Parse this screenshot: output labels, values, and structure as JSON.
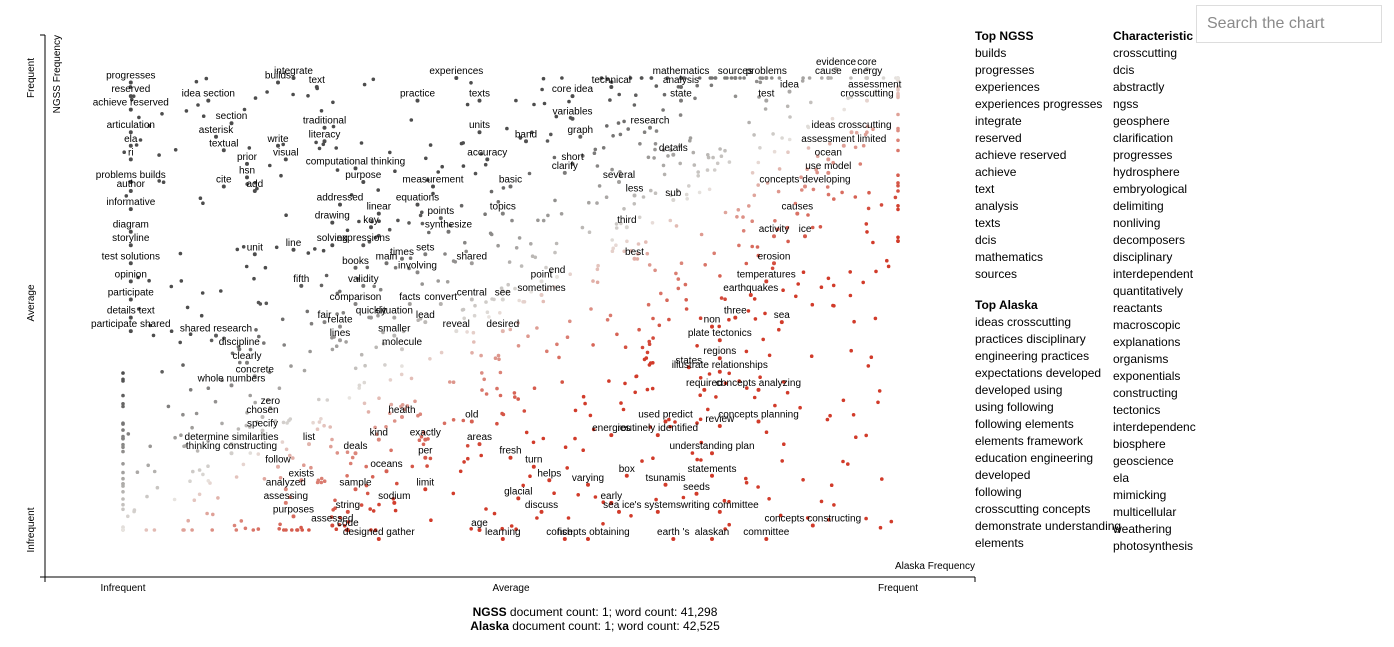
{
  "search": {
    "placeholder": "Search the chart"
  },
  "chart_data": {
    "type": "scatter",
    "title": "",
    "xlabel": "Alaska Frequency",
    "ylabel": "NGSS Frequency",
    "x_ticks": [
      "Infrequent",
      "Average",
      "Frequent"
    ],
    "y_ticks": [
      "Infrequent",
      "Average",
      "Frequent"
    ],
    "xlim": [
      0,
      1
    ],
    "ylim": [
      0,
      1
    ],
    "grid": false,
    "colors": {
      "ngss": "#4d4d4d",
      "alaska": "#d13b2a",
      "neutral": "#e8e4e0"
    },
    "labeled_points": [
      {
        "term": "progresses",
        "x": 0.01,
        "y": 0.99
      },
      {
        "term": "reserved",
        "x": 0.01,
        "y": 0.96
      },
      {
        "term": "achieve reserved",
        "x": 0.01,
        "y": 0.93
      },
      {
        "term": "idea section",
        "x": 0.11,
        "y": 0.95
      },
      {
        "term": "builds",
        "x": 0.2,
        "y": 0.99
      },
      {
        "term": "integrate",
        "x": 0.22,
        "y": 1.0
      },
      {
        "term": "text",
        "x": 0.25,
        "y": 0.98
      },
      {
        "term": "articulation",
        "x": 0.01,
        "y": 0.88
      },
      {
        "term": "section",
        "x": 0.14,
        "y": 0.9
      },
      {
        "term": "asterisk",
        "x": 0.12,
        "y": 0.87
      },
      {
        "term": "ela",
        "x": 0.01,
        "y": 0.85
      },
      {
        "term": "textual",
        "x": 0.13,
        "y": 0.84
      },
      {
        "term": "write",
        "x": 0.2,
        "y": 0.85
      },
      {
        "term": "traditional",
        "x": 0.26,
        "y": 0.89
      },
      {
        "term": "literacy",
        "x": 0.26,
        "y": 0.86
      },
      {
        "term": "ri",
        "x": 0.01,
        "y": 0.82
      },
      {
        "term": "prior",
        "x": 0.16,
        "y": 0.81
      },
      {
        "term": "visual",
        "x": 0.21,
        "y": 0.82
      },
      {
        "term": "computational thinking",
        "x": 0.3,
        "y": 0.8
      },
      {
        "term": "hsn",
        "x": 0.16,
        "y": 0.78
      },
      {
        "term": "purpose",
        "x": 0.31,
        "y": 0.77
      },
      {
        "term": "measurement",
        "x": 0.4,
        "y": 0.76
      },
      {
        "term": "problems builds",
        "x": 0.01,
        "y": 0.77
      },
      {
        "term": "author",
        "x": 0.01,
        "y": 0.75
      },
      {
        "term": "cite",
        "x": 0.13,
        "y": 0.76
      },
      {
        "term": "add",
        "x": 0.17,
        "y": 0.75
      },
      {
        "term": "addressed",
        "x": 0.28,
        "y": 0.72
      },
      {
        "term": "equations",
        "x": 0.38,
        "y": 0.72
      },
      {
        "term": "informative",
        "x": 0.01,
        "y": 0.71
      },
      {
        "term": "linear",
        "x": 0.33,
        "y": 0.7
      },
      {
        "term": "points",
        "x": 0.41,
        "y": 0.69
      },
      {
        "term": "drawing",
        "x": 0.27,
        "y": 0.68
      },
      {
        "term": "key",
        "x": 0.32,
        "y": 0.67
      },
      {
        "term": "synthesize",
        "x": 0.42,
        "y": 0.66
      },
      {
        "term": "diagram",
        "x": 0.01,
        "y": 0.66
      },
      {
        "term": "storyline",
        "x": 0.01,
        "y": 0.63
      },
      {
        "term": "solving",
        "x": 0.27,
        "y": 0.63
      },
      {
        "term": "expressions",
        "x": 0.31,
        "y": 0.63
      },
      {
        "term": "line",
        "x": 0.22,
        "y": 0.62
      },
      {
        "term": "unit",
        "x": 0.17,
        "y": 0.61
      },
      {
        "term": "sets",
        "x": 0.39,
        "y": 0.61
      },
      {
        "term": "times",
        "x": 0.36,
        "y": 0.6
      },
      {
        "term": "shared",
        "x": 0.45,
        "y": 0.59
      },
      {
        "term": "main",
        "x": 0.34,
        "y": 0.59
      },
      {
        "term": "test solutions",
        "x": 0.01,
        "y": 0.59
      },
      {
        "term": "books",
        "x": 0.3,
        "y": 0.58
      },
      {
        "term": "involving",
        "x": 0.38,
        "y": 0.57
      },
      {
        "term": "fifth",
        "x": 0.23,
        "y": 0.54
      },
      {
        "term": "opinion",
        "x": 0.01,
        "y": 0.55
      },
      {
        "term": "validity",
        "x": 0.31,
        "y": 0.54
      },
      {
        "term": "participate",
        "x": 0.01,
        "y": 0.51
      },
      {
        "term": "central",
        "x": 0.45,
        "y": 0.51
      },
      {
        "term": "see",
        "x": 0.49,
        "y": 0.51
      },
      {
        "term": "comparison",
        "x": 0.3,
        "y": 0.5
      },
      {
        "term": "facts",
        "x": 0.37,
        "y": 0.5
      },
      {
        "term": "convert",
        "x": 0.41,
        "y": 0.5
      },
      {
        "term": "situation",
        "x": 0.35,
        "y": 0.47
      },
      {
        "term": "quickly",
        "x": 0.32,
        "y": 0.47
      },
      {
        "term": "fair",
        "x": 0.26,
        "y": 0.46
      },
      {
        "term": "lead",
        "x": 0.39,
        "y": 0.46
      },
      {
        "term": "details text",
        "x": 0.01,
        "y": 0.47
      },
      {
        "term": "relate",
        "x": 0.28,
        "y": 0.45
      },
      {
        "term": "reveal",
        "x": 0.43,
        "y": 0.44
      },
      {
        "term": "desired",
        "x": 0.49,
        "y": 0.44
      },
      {
        "term": "participate shared",
        "x": 0.01,
        "y": 0.44
      },
      {
        "term": "shared research",
        "x": 0.12,
        "y": 0.43
      },
      {
        "term": "smaller",
        "x": 0.35,
        "y": 0.43
      },
      {
        "term": "lines",
        "x": 0.28,
        "y": 0.42
      },
      {
        "term": "discipline",
        "x": 0.15,
        "y": 0.4
      },
      {
        "term": "molecule",
        "x": 0.36,
        "y": 0.4
      },
      {
        "term": "clearly",
        "x": 0.16,
        "y": 0.37
      },
      {
        "term": "concrete",
        "x": 0.17,
        "y": 0.34
      },
      {
        "term": "whole numbers",
        "x": 0.14,
        "y": 0.32
      },
      {
        "term": "zero",
        "x": 0.19,
        "y": 0.27
      },
      {
        "term": "chosen",
        "x": 0.18,
        "y": 0.25
      },
      {
        "term": "health",
        "x": 0.36,
        "y": 0.25
      },
      {
        "term": "old",
        "x": 0.45,
        "y": 0.24
      },
      {
        "term": "specify",
        "x": 0.18,
        "y": 0.22
      },
      {
        "term": "kind",
        "x": 0.33,
        "y": 0.2
      },
      {
        "term": "exactly",
        "x": 0.39,
        "y": 0.2
      },
      {
        "term": "determine similarities",
        "x": 0.14,
        "y": 0.19
      },
      {
        "term": "list",
        "x": 0.24,
        "y": 0.19
      },
      {
        "term": "areas",
        "x": 0.46,
        "y": 0.19
      },
      {
        "term": "deals",
        "x": 0.3,
        "y": 0.17
      },
      {
        "term": "per",
        "x": 0.39,
        "y": 0.16
      },
      {
        "term": "thinking constructing",
        "x": 0.14,
        "y": 0.17
      },
      {
        "term": "fresh",
        "x": 0.5,
        "y": 0.16
      },
      {
        "term": "follow",
        "x": 0.2,
        "y": 0.14
      },
      {
        "term": "oceans",
        "x": 0.34,
        "y": 0.13
      },
      {
        "term": "turn",
        "x": 0.53,
        "y": 0.14
      },
      {
        "term": "exists",
        "x": 0.23,
        "y": 0.11
      },
      {
        "term": "helps",
        "x": 0.55,
        "y": 0.11
      },
      {
        "term": "varying",
        "x": 0.6,
        "y": 0.1
      },
      {
        "term": "analyzed",
        "x": 0.21,
        "y": 0.09
      },
      {
        "term": "sample",
        "x": 0.3,
        "y": 0.09
      },
      {
        "term": "limit",
        "x": 0.39,
        "y": 0.09
      },
      {
        "term": "glacial",
        "x": 0.51,
        "y": 0.07
      },
      {
        "term": "assessing",
        "x": 0.21,
        "y": 0.06
      },
      {
        "term": "sodium",
        "x": 0.35,
        "y": 0.06
      },
      {
        "term": "purposes",
        "x": 0.22,
        "y": 0.03
      },
      {
        "term": "string",
        "x": 0.29,
        "y": 0.04
      },
      {
        "term": "discuss",
        "x": 0.54,
        "y": 0.04
      },
      {
        "term": "assessed",
        "x": 0.27,
        "y": 0.01
      },
      {
        "term": "code",
        "x": 0.29,
        "y": 0.0
      },
      {
        "term": "age",
        "x": 0.46,
        "y": 0.0
      },
      {
        "term": "designed gather",
        "x": 0.33,
        "y": -0.02
      },
      {
        "term": "learning",
        "x": 0.49,
        "y": -0.02
      },
      {
        "term": "fish",
        "x": 0.57,
        "y": -0.02
      },
      {
        "term": "concepts obtaining",
        "x": 0.6,
        "y": -0.02
      },
      {
        "term": "earth 's",
        "x": 0.71,
        "y": -0.02
      },
      {
        "term": "alaskan",
        "x": 0.76,
        "y": -0.02
      },
      {
        "term": "committee",
        "x": 0.83,
        "y": -0.02
      },
      {
        "term": "experiences",
        "x": 0.43,
        "y": 1.0
      },
      {
        "term": "practice",
        "x": 0.38,
        "y": 0.95
      },
      {
        "term": "texts",
        "x": 0.46,
        "y": 0.95
      },
      {
        "term": "units",
        "x": 0.46,
        "y": 0.88
      },
      {
        "term": "band",
        "x": 0.52,
        "y": 0.86
      },
      {
        "term": "accuracy",
        "x": 0.47,
        "y": 0.82
      },
      {
        "term": "basic",
        "x": 0.5,
        "y": 0.76
      },
      {
        "term": "topics",
        "x": 0.49,
        "y": 0.7
      },
      {
        "term": "point",
        "x": 0.54,
        "y": 0.55
      },
      {
        "term": "end",
        "x": 0.56,
        "y": 0.56
      },
      {
        "term": "sometimes",
        "x": 0.54,
        "y": 0.52
      },
      {
        "term": "core idea",
        "x": 0.58,
        "y": 0.96
      },
      {
        "term": "technical",
        "x": 0.63,
        "y": 0.98
      },
      {
        "term": "variables",
        "x": 0.58,
        "y": 0.91
      },
      {
        "term": "graph",
        "x": 0.59,
        "y": 0.87
      },
      {
        "term": "short",
        "x": 0.58,
        "y": 0.81
      },
      {
        "term": "clarify",
        "x": 0.57,
        "y": 0.79
      },
      {
        "term": "several",
        "x": 0.64,
        "y": 0.77
      },
      {
        "term": "less",
        "x": 0.66,
        "y": 0.74
      },
      {
        "term": "sub",
        "x": 0.71,
        "y": 0.73
      },
      {
        "term": "third",
        "x": 0.65,
        "y": 0.67
      },
      {
        "term": "best",
        "x": 0.66,
        "y": 0.6
      },
      {
        "term": "mathematics",
        "x": 0.72,
        "y": 1.0
      },
      {
        "term": "analysis",
        "x": 0.72,
        "y": 0.98
      },
      {
        "term": "state",
        "x": 0.72,
        "y": 0.95
      },
      {
        "term": "research",
        "x": 0.68,
        "y": 0.89
      },
      {
        "term": "details",
        "x": 0.71,
        "y": 0.83
      },
      {
        "term": "sources",
        "x": 0.79,
        "y": 1.0
      },
      {
        "term": "problems",
        "x": 0.83,
        "y": 1.0
      },
      {
        "term": "test",
        "x": 0.83,
        "y": 0.95
      },
      {
        "term": "idea",
        "x": 0.86,
        "y": 0.97
      },
      {
        "term": "evidence",
        "x": 0.92,
        "y": 1.02
      },
      {
        "term": "cause",
        "x": 0.91,
        "y": 1.0
      },
      {
        "term": "core",
        "x": 0.96,
        "y": 1.02
      },
      {
        "term": "energy",
        "x": 0.96,
        "y": 1.0
      },
      {
        "term": "assessment",
        "x": 0.97,
        "y": 0.97
      },
      {
        "term": "crosscutting",
        "x": 0.96,
        "y": 0.95
      },
      {
        "term": "ideas crosscutting",
        "x": 0.94,
        "y": 0.88
      },
      {
        "term": "assessment limited",
        "x": 0.93,
        "y": 0.85
      },
      {
        "term": "ocean",
        "x": 0.91,
        "y": 0.82
      },
      {
        "term": "use model",
        "x": 0.91,
        "y": 0.79
      },
      {
        "term": "concepts developing",
        "x": 0.88,
        "y": 0.76
      },
      {
        "term": "causes",
        "x": 0.87,
        "y": 0.7
      },
      {
        "term": "activity",
        "x": 0.84,
        "y": 0.65
      },
      {
        "term": "ice",
        "x": 0.88,
        "y": 0.65
      },
      {
        "term": "erosion",
        "x": 0.84,
        "y": 0.59
      },
      {
        "term": "temperatures",
        "x": 0.83,
        "y": 0.55
      },
      {
        "term": "earthquakes",
        "x": 0.81,
        "y": 0.52
      },
      {
        "term": "three",
        "x": 0.79,
        "y": 0.47
      },
      {
        "term": "sea",
        "x": 0.85,
        "y": 0.46
      },
      {
        "term": "non",
        "x": 0.76,
        "y": 0.45
      },
      {
        "term": "plate tectonics",
        "x": 0.77,
        "y": 0.42
      },
      {
        "term": "regions",
        "x": 0.77,
        "y": 0.38
      },
      {
        "term": "states",
        "x": 0.73,
        "y": 0.36
      },
      {
        "term": "illustrate relationships",
        "x": 0.77,
        "y": 0.35
      },
      {
        "term": "required",
        "x": 0.75,
        "y": 0.31
      },
      {
        "term": "concepts analyzing",
        "x": 0.82,
        "y": 0.31
      },
      {
        "term": "used predict",
        "x": 0.7,
        "y": 0.24
      },
      {
        "term": "review",
        "x": 0.77,
        "y": 0.23
      },
      {
        "term": "concepts planning",
        "x": 0.82,
        "y": 0.24
      },
      {
        "term": "energies",
        "x": 0.63,
        "y": 0.21
      },
      {
        "term": "routinely identified",
        "x": 0.69,
        "y": 0.21
      },
      {
        "term": "understanding plan",
        "x": 0.76,
        "y": 0.17
      },
      {
        "term": "statements",
        "x": 0.76,
        "y": 0.12
      },
      {
        "term": "box",
        "x": 0.65,
        "y": 0.12
      },
      {
        "term": "tsunamis",
        "x": 0.7,
        "y": 0.1
      },
      {
        "term": "seeds",
        "x": 0.74,
        "y": 0.08
      },
      {
        "term": "early",
        "x": 0.63,
        "y": 0.06
      },
      {
        "term": "sea ice",
        "x": 0.64,
        "y": 0.04
      },
      {
        "term": "'s systems",
        "x": 0.69,
        "y": 0.04
      },
      {
        "term": "writing committee",
        "x": 0.77,
        "y": 0.04
      },
      {
        "term": "concepts constructing",
        "x": 0.89,
        "y": 0.01
      }
    ]
  },
  "sidebar": {
    "top_ngss": {
      "heading": "Top NGSS",
      "items": [
        "builds",
        "progresses",
        "experiences",
        "experiences progresses",
        "integrate",
        "reserved",
        "achieve reserved",
        "achieve",
        "text",
        "analysis",
        "texts",
        "dcis",
        "mathematics",
        "sources"
      ]
    },
    "top_alaska": {
      "heading": "Top Alaska",
      "items": [
        "ideas crosscutting",
        "practices disciplinary",
        "engineering practices",
        "expectations developed",
        "developed using",
        "using following",
        "following elements",
        "elements framework",
        "education engineering",
        "developed",
        "following",
        "crosscutting concepts",
        "demonstrate understanding",
        "elements"
      ]
    },
    "characteristic": {
      "heading": "Characteristic",
      "items": [
        "crosscutting",
        "dcis",
        "abstractly",
        "ngss",
        "geosphere",
        "clarification",
        "progresses",
        "hydrosphere",
        "embryological",
        "delimiting",
        "nonliving",
        "decomposers",
        "disciplinary",
        "interdependent",
        "quantitatively",
        "reactants",
        "macroscopic",
        "explanations",
        "organisms",
        "exponentials",
        "constructing",
        "tectonics",
        "interdependenc",
        "biosphere",
        "geoscience",
        "ela",
        "mimicking",
        "multicellular",
        "weathering",
        "photosynthesis"
      ]
    }
  },
  "footer": {
    "ngss_name": "NGSS",
    "ngss_text": " document count: 1; word count: 41,298",
    "alaska_name": "Alaska",
    "alaska_text": " document count: 1; word count: 42,525"
  }
}
